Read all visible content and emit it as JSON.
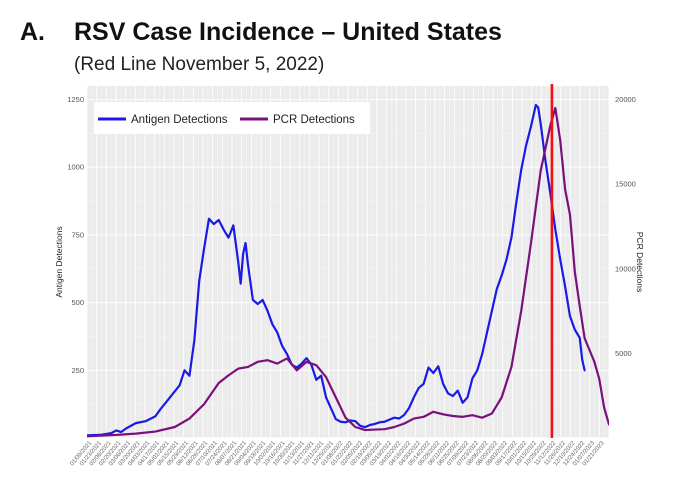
{
  "header": {
    "panel_letter": "A.",
    "title": "RSV Case Incidence – United States",
    "subtitle": "(Red Line November 5, 2022)"
  },
  "chart_data": {
    "type": "line",
    "title": "RSV Case Incidence – United States",
    "subtitle": "(Red Line November 5, 2022)",
    "xlabel": "",
    "ylabel": "Antigen Detections",
    "y2label": "PCR Detections",
    "ylim": [
      0,
      1300
    ],
    "y2lim": [
      0,
      20800
    ],
    "yticks": [
      250,
      500,
      750,
      1000,
      1250
    ],
    "y2ticks": [
      5000,
      10000,
      15000,
      20000
    ],
    "x_tick_labels": [
      "01/09/2021",
      "01/23/2021",
      "02/06/2021",
      "02/20/2021",
      "03/06/2021",
      "03/20/2021",
      "04/03/2021",
      "04/17/2021",
      "05/01/2021",
      "05/15/2021",
      "05/29/2021",
      "06/12/2021",
      "06/26/2021",
      "07/10/2021",
      "07/24/2021",
      "08/07/2021",
      "08/21/2021",
      "09/04/2021",
      "09/18/2021",
      "10/02/2021",
      "10/16/2021",
      "10/30/2021",
      "11/13/2021",
      "11/27/2021",
      "12/11/2021",
      "12/25/2021",
      "01/08/2022",
      "01/22/2022",
      "02/05/2022",
      "02/19/2022",
      "03/05/2022",
      "03/19/2022",
      "04/02/2022",
      "04/16/2022",
      "04/30/2022",
      "05/14/2022",
      "05/28/2022",
      "06/11/2022",
      "06/25/2022",
      "07/09/2022",
      "07/23/2022",
      "08/06/2022",
      "08/20/2022",
      "09/03/2022",
      "09/17/2022",
      "10/01/2022",
      "10/15/2022",
      "10/29/2022",
      "11/12/2022",
      "11/26/2022",
      "12/10/2022",
      "12/24/2022",
      "01/07/2023",
      "01/21/2023"
    ],
    "x_range_weeks": [
      0,
      107
    ],
    "reference_line": {
      "week": 95.3,
      "label": "November 5, 2022",
      "color": "#ee1111"
    },
    "series": [
      {
        "name": "Antigen Detections",
        "axis": "left",
        "color": "#1a1ae6",
        "points": [
          [
            0,
            10
          ],
          [
            3,
            12
          ],
          [
            5,
            18
          ],
          [
            6,
            28
          ],
          [
            7,
            22
          ],
          [
            8,
            35
          ],
          [
            10,
            55
          ],
          [
            12,
            62
          ],
          [
            14,
            80
          ],
          [
            15,
            105
          ],
          [
            17,
            150
          ],
          [
            19,
            195
          ],
          [
            20,
            250
          ],
          [
            21,
            230
          ],
          [
            22,
            360
          ],
          [
            23,
            580
          ],
          [
            24,
            700
          ],
          [
            25,
            810
          ],
          [
            26,
            790
          ],
          [
            27,
            805
          ],
          [
            28,
            770
          ],
          [
            29,
            740
          ],
          [
            30,
            785
          ],
          [
            31,
            650
          ],
          [
            31.5,
            570
          ],
          [
            32,
            680
          ],
          [
            32.5,
            720
          ],
          [
            33,
            640
          ],
          [
            34,
            510
          ],
          [
            35,
            495
          ],
          [
            36,
            510
          ],
          [
            37,
            470
          ],
          [
            38,
            420
          ],
          [
            39,
            390
          ],
          [
            40,
            340
          ],
          [
            41,
            310
          ],
          [
            42,
            270
          ],
          [
            43,
            260
          ],
          [
            44,
            275
          ],
          [
            45,
            295
          ],
          [
            46,
            270
          ],
          [
            47,
            215
          ],
          [
            48,
            230
          ],
          [
            49,
            150
          ],
          [
            50,
            110
          ],
          [
            51,
            70
          ],
          [
            52,
            60
          ],
          [
            53,
            58
          ],
          [
            54,
            65
          ],
          [
            55,
            62
          ],
          [
            56,
            45
          ],
          [
            57,
            40
          ],
          [
            58,
            48
          ],
          [
            59,
            52
          ],
          [
            60,
            58
          ],
          [
            61,
            60
          ],
          [
            62,
            68
          ],
          [
            63,
            75
          ],
          [
            64,
            72
          ],
          [
            65,
            85
          ],
          [
            66,
            110
          ],
          [
            67,
            150
          ],
          [
            68,
            185
          ],
          [
            69,
            200
          ],
          [
            70,
            260
          ],
          [
            71,
            240
          ],
          [
            72,
            265
          ],
          [
            73,
            200
          ],
          [
            74,
            165
          ],
          [
            75,
            155
          ],
          [
            76,
            175
          ],
          [
            77,
            130
          ],
          [
            78,
            150
          ],
          [
            79,
            220
          ],
          [
            80,
            250
          ],
          [
            81,
            310
          ],
          [
            82,
            390
          ],
          [
            83,
            470
          ],
          [
            84,
            550
          ],
          [
            85,
            600
          ],
          [
            86,
            660
          ],
          [
            87,
            740
          ],
          [
            88,
            870
          ],
          [
            89,
            990
          ],
          [
            90,
            1080
          ],
          [
            91,
            1150
          ],
          [
            92,
            1230
          ],
          [
            92.5,
            1220
          ],
          [
            93,
            1160
          ],
          [
            94,
            1020
          ],
          [
            95,
            900
          ],
          [
            96,
            770
          ],
          [
            97,
            660
          ],
          [
            98,
            560
          ],
          [
            99,
            450
          ],
          [
            100,
            400
          ],
          [
            101,
            370
          ],
          [
            101.5,
            290
          ],
          [
            102,
            250
          ]
        ]
      },
      {
        "name": "PCR Detections",
        "axis": "right",
        "color": "#7b0f7b",
        "points": [
          [
            0,
            100
          ],
          [
            6,
            180
          ],
          [
            10,
            260
          ],
          [
            14,
            380
          ],
          [
            18,
            650
          ],
          [
            21,
            1150
          ],
          [
            24,
            2000
          ],
          [
            27,
            3250
          ],
          [
            29,
            3700
          ],
          [
            31,
            4100
          ],
          [
            33,
            4200
          ],
          [
            35,
            4500
          ],
          [
            37,
            4600
          ],
          [
            39,
            4400
          ],
          [
            41,
            4700
          ],
          [
            43,
            4000
          ],
          [
            45,
            4500
          ],
          [
            47,
            4300
          ],
          [
            49,
            3600
          ],
          [
            51,
            2400
          ],
          [
            53,
            1200
          ],
          [
            55,
            650
          ],
          [
            57,
            470
          ],
          [
            59,
            500
          ],
          [
            61,
            520
          ],
          [
            63,
            650
          ],
          [
            65,
            850
          ],
          [
            67,
            1150
          ],
          [
            69,
            1250
          ],
          [
            71,
            1550
          ],
          [
            73,
            1400
          ],
          [
            75,
            1300
          ],
          [
            77,
            1250
          ],
          [
            79,
            1350
          ],
          [
            81,
            1200
          ],
          [
            83,
            1450
          ],
          [
            85,
            2400
          ],
          [
            87,
            4200
          ],
          [
            89,
            7500
          ],
          [
            91,
            11500
          ],
          [
            93,
            15800
          ],
          [
            95,
            18500
          ],
          [
            96,
            19500
          ],
          [
            97,
            17600
          ],
          [
            98,
            14700
          ],
          [
            99,
            13200
          ],
          [
            100,
            9800
          ],
          [
            101,
            7800
          ],
          [
            102,
            5900
          ],
          [
            103,
            5200
          ],
          [
            104,
            4500
          ],
          [
            105,
            3500
          ],
          [
            106,
            1800
          ],
          [
            107,
            800
          ]
        ]
      }
    ],
    "legend": {
      "placement": "top-left",
      "entries": [
        "Antigen Detections",
        "PCR Detections"
      ]
    }
  }
}
